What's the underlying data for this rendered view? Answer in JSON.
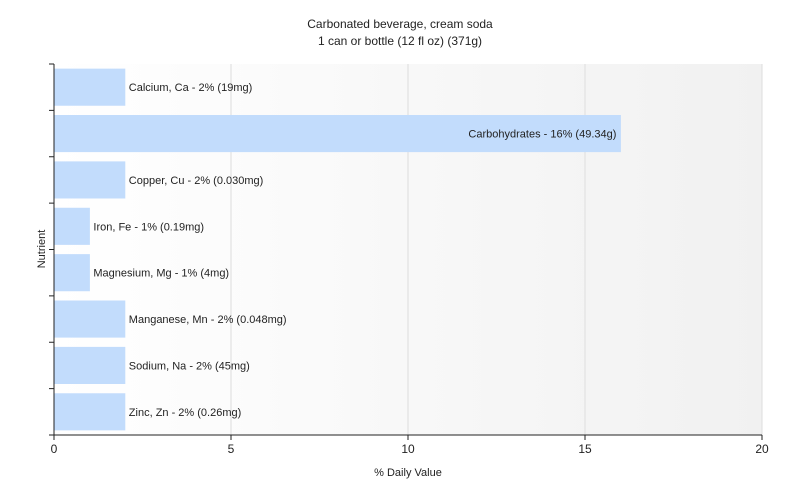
{
  "chart_data": {
    "type": "bar",
    "orientation": "horizontal",
    "title": "Carbonated beverage, cream soda",
    "subtitle": "1 can or bottle (12 fl oz) (371g)",
    "xlabel": "% Daily Value",
    "ylabel": "Nutrient",
    "xlim": [
      0,
      20
    ],
    "xticks": [
      "0",
      "5",
      "10",
      "15",
      "20"
    ],
    "grid": true,
    "bar_color": "#c2dcfc",
    "categories": [
      "Calcium, Ca",
      "Carbohydrates",
      "Copper, Cu",
      "Iron, Fe",
      "Magnesium, Mg",
      "Manganese, Mn",
      "Sodium, Na",
      "Zinc, Zn"
    ],
    "values": [
      2,
      16,
      2,
      1,
      1,
      2,
      2,
      2
    ],
    "labels": [
      "Calcium, Ca - 2% (19mg)",
      "Carbohydrates - 16% (49.34g)",
      "Copper, Cu - 2% (0.030mg)",
      "Iron, Fe - 1% (0.19mg)",
      "Magnesium, Mg - 1% (4mg)",
      "Manganese, Mn - 2% (0.048mg)",
      "Sodium, Na - 2% (45mg)",
      "Zinc, Zn - 2% (0.26mg)"
    ]
  }
}
